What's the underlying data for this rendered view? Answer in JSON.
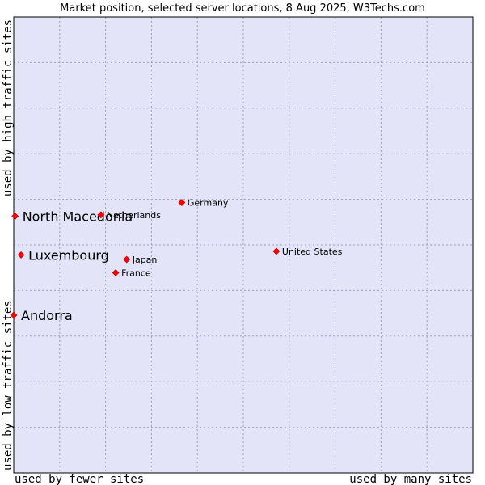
{
  "chart_data": {
    "type": "scatter",
    "title": "Market position, selected server locations, 8 Aug 2025, W3Techs.com",
    "xlabel_left": "used by fewer sites",
    "xlabel_right": "used by many sites",
    "ylabel_bottom": "used by low traffic sites",
    "ylabel_top": "used by high traffic sites",
    "xlim": [
      0,
      100
    ],
    "ylim": [
      0,
      100
    ],
    "grid": true,
    "colors": {
      "plot_bg": "#e3e4f8",
      "grid": "#a0a0c0",
      "border": "#000000",
      "marker": "#ff0000"
    },
    "points": [
      {
        "label": "North Macedonia",
        "x": 0.3,
        "y": 56.3,
        "highlight": true
      },
      {
        "label": "Luxembourg",
        "x": 1.6,
        "y": 47.8,
        "highlight": true
      },
      {
        "label": "Andorra",
        "x": 0.0,
        "y": 34.6,
        "highlight": true
      },
      {
        "label": "Netherlands",
        "x": 19.0,
        "y": 56.6,
        "highlight": false
      },
      {
        "label": "Germany",
        "x": 36.6,
        "y": 59.3,
        "highlight": false
      },
      {
        "label": "Japan",
        "x": 24.6,
        "y": 46.8,
        "highlight": false
      },
      {
        "label": "France",
        "x": 22.2,
        "y": 43.9,
        "highlight": false
      },
      {
        "label": "United States",
        "x": 57.2,
        "y": 48.6,
        "highlight": false
      }
    ]
  }
}
